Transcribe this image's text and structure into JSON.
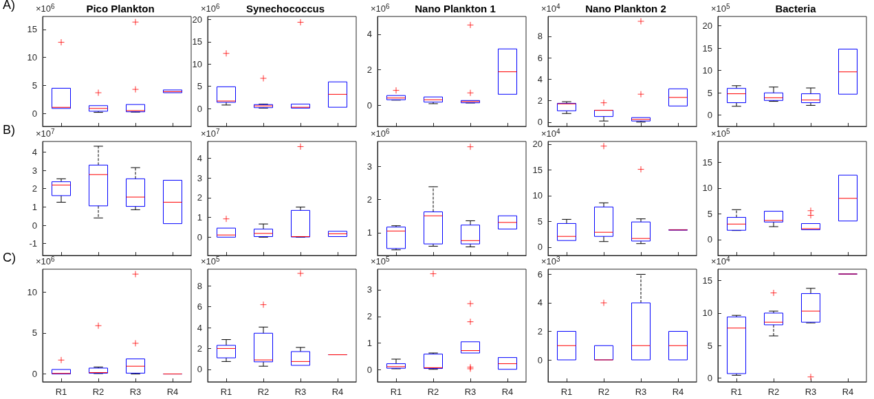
{
  "chart_data": [
    {
      "type": "box",
      "title": "Pico Plankton",
      "ylabel": "×10$^{6}$",
      "annotations": [
        "A)"
      ],
      "categories": [
        null,
        null,
        null,
        null
      ],
      "ylim": [
        -2.3,
        17.3
      ],
      "yticks": [
        0,
        5,
        10,
        15
      ],
      "tick_labels": "y",
      "series": [
        {
          "color": "#0000ff",
          "boxes": [
            {
              "low": 0.9,
              "q1": 0.9,
              "median": 1.1,
              "q3": 4.5,
              "high": 4.5,
              "outliers": [
                12.7
              ]
            },
            {
              "low": 0.2,
              "q1": 0.4,
              "median": 0.9,
              "q3": 1.4,
              "high": 1.4,
              "outliers": [
                3.7
              ]
            },
            {
              "low": 0.25,
              "q1": 0.3,
              "median": 0.5,
              "q3": 1.6,
              "high": 1.6,
              "outliers": [
                4.3,
                16.3
              ]
            },
            {
              "low": 3.7,
              "q1": 3.7,
              "median": 3.9,
              "q3": 4.2,
              "high": 4.2
            }
          ]
        }
      ]
    },
    {
      "type": "box",
      "title": "Synechococcus",
      "ylabel": "×10$^{6}$",
      "categories": [
        null,
        null,
        null,
        null
      ],
      "ylim": [
        -4,
        20.7
      ],
      "yticks": [
        0,
        5,
        10,
        15,
        20
      ],
      "tick_labels": "y",
      "series": [
        {
          "color": "#0000ff",
          "boxes": [
            {
              "low": 0.8,
              "q1": 1.4,
              "median": 1.7,
              "q3": 4.9,
              "high": 4.9,
              "outliers": [
                12.4
              ]
            },
            {
              "low": 0.1,
              "q1": 0.2,
              "median": 0.6,
              "q3": 0.9,
              "high": 1.0,
              "outliers": [
                6.8
              ]
            },
            {
              "low": 0.1,
              "q1": 0.1,
              "median": 0.3,
              "q3": 1.0,
              "high": 1.0,
              "outliers": [
                19.4
              ]
            },
            {
              "low": 0.3,
              "q1": 0.3,
              "median": 3.2,
              "q3": 6.0,
              "high": 6.0
            }
          ]
        }
      ]
    },
    {
      "type": "box",
      "title": "Nano Plankton 1",
      "ylabel": "×10$^{6}$",
      "categories": [
        null,
        null,
        null,
        null
      ],
      "ylim": [
        -1.2,
        5
      ],
      "yticks": [
        0,
        2,
        4
      ],
      "tick_labels": "y",
      "series": [
        {
          "color": "#0000ff",
          "boxes": [
            {
              "low": 0.28,
              "q1": 0.3,
              "median": 0.4,
              "q3": 0.54,
              "high": 0.54,
              "outliers": [
                0.83
              ]
            },
            {
              "low": 0.08,
              "q1": 0.17,
              "median": 0.3,
              "q3": 0.46,
              "high": 0.46
            },
            {
              "low": 0.12,
              "q1": 0.13,
              "median": 0.2,
              "q3": 0.26,
              "high": 0.26,
              "outliers": [
                0.69,
                4.52
              ]
            },
            {
              "low": 0.61,
              "q1": 0.61,
              "median": 1.88,
              "q3": 3.17,
              "high": 3.17
            }
          ]
        }
      ]
    },
    {
      "type": "box",
      "title": "Nano Plankton 2",
      "ylabel": "×10$^{4}$",
      "categories": [
        null,
        null,
        null,
        null
      ],
      "ylim": [
        -0.4,
        9.85
      ],
      "yticks": [
        0,
        2,
        4,
        6,
        8
      ],
      "tick_labels": "y",
      "series": [
        {
          "color": "#0000ff",
          "boxes": [
            {
              "low": 0.8,
              "q1": 1.05,
              "median": 1.7,
              "q3": 1.75,
              "high": 1.9
            },
            {
              "low": 0.1,
              "q1": 0.52,
              "median": 1.1,
              "q3": 1.1,
              "high": 1.1,
              "outliers": [
                1.8
              ]
            },
            {
              "low": 0.0,
              "q1": 0.1,
              "median": 0.25,
              "q3": 0.42,
              "high": 0.42,
              "outliers": [
                2.6,
                9.4
              ]
            },
            {
              "low": 1.5,
              "q1": 1.5,
              "median": 2.3,
              "q3": 3.1,
              "high": 3.1
            }
          ]
        }
      ]
    },
    {
      "type": "box",
      "title": "Bacteria",
      "ylabel": "×10$^{5}$",
      "categories": [
        null,
        null,
        null,
        null
      ],
      "ylim": [
        -2.5,
        22.1
      ],
      "yticks": [
        0,
        5,
        10,
        15,
        20
      ],
      "tick_labels": "y",
      "series": [
        {
          "color": "#0000ff",
          "boxes": [
            {
              "low": 2.0,
              "q1": 2.8,
              "median": 4.8,
              "q3": 6.0,
              "high": 6.6
            },
            {
              "low": 3.1,
              "q1": 3.3,
              "median": 3.9,
              "q3": 5.0,
              "high": 6.3
            },
            {
              "low": 2.2,
              "q1": 2.8,
              "median": 3.4,
              "q3": 4.8,
              "high": 6.1
            },
            {
              "low": 4.7,
              "q1": 4.7,
              "median": 9.7,
              "q3": 14.8,
              "high": 14.8
            }
          ]
        }
      ]
    },
    {
      "type": "box",
      "ylabel": "×10$^{7}$",
      "annotations": [
        "B)"
      ],
      "categories": [
        null,
        null,
        null,
        null
      ],
      "ylim": [
        -1.65,
        4.58
      ],
      "yticks": [
        -1,
        0,
        1,
        2,
        3,
        4
      ],
      "tick_labels": "y",
      "series": [
        {
          "color": "#0000ff",
          "boxes": [
            {
              "low": 1.26,
              "q1": 1.62,
              "median": 2.2,
              "q3": 2.38,
              "high": 2.54
            },
            {
              "low": 0.4,
              "q1": 1.06,
              "median": 2.77,
              "q3": 3.29,
              "high": 4.32
            },
            {
              "low": 0.85,
              "q1": 1.03,
              "median": 1.54,
              "q3": 2.54,
              "high": 3.15
            },
            {
              "low": 0.09,
              "q1": 0.09,
              "median": 1.26,
              "q3": 2.46,
              "high": 2.46
            }
          ]
        }
      ]
    },
    {
      "type": "box",
      "ylabel": "×10$^{7}$",
      "categories": [
        null,
        null,
        null,
        null
      ],
      "ylim": [
        -0.93,
        4.86
      ],
      "yticks": [
        0,
        1,
        2,
        3,
        4
      ],
      "tick_labels": "y",
      "series": [
        {
          "color": "#0000ff",
          "boxes": [
            {
              "low": 0.0,
              "q1": 0.0,
              "median": 0.11,
              "q3": 0.46,
              "high": 0.46,
              "outliers": [
                0.93
              ]
            },
            {
              "low": 0.0,
              "q1": 0.03,
              "median": 0.19,
              "q3": 0.41,
              "high": 0.67
            },
            {
              "low": 0.0,
              "q1": 0.01,
              "median": 0.03,
              "q3": 1.36,
              "high": 1.53,
              "outliers": [
                4.6
              ]
            },
            {
              "low": 0.03,
              "q1": 0.03,
              "median": 0.17,
              "q3": 0.3,
              "high": 0.3
            }
          ]
        }
      ]
    },
    {
      "type": "box",
      "ylabel": "×10$^{6}$",
      "categories": [
        null,
        null,
        null,
        null
      ],
      "ylim": [
        0.31,
        3.76
      ],
      "yticks": [
        1,
        2,
        3
      ],
      "tick_labels": "y",
      "series": [
        {
          "color": "#0000ff",
          "boxes": [
            {
              "low": 0.48,
              "q1": 0.52,
              "median": 1.05,
              "q3": 1.17,
              "high": 1.21
            },
            {
              "low": 0.59,
              "q1": 0.66,
              "median": 1.51,
              "q3": 1.63,
              "high": 2.39
            },
            {
              "low": 0.57,
              "q1": 0.66,
              "median": 0.76,
              "q3": 1.23,
              "high": 1.36,
              "outliers": [
                3.6
              ]
            },
            {
              "low": 1.11,
              "q1": 1.11,
              "median": 1.31,
              "q3": 1.51,
              "high": 1.51
            }
          ]
        }
      ]
    },
    {
      "type": "box",
      "ylabel": "×10$^{4}$",
      "categories": [
        null,
        null,
        null,
        null
      ],
      "ylim": [
        -1.6,
        20.5
      ],
      "yticks": [
        0,
        5,
        10,
        15,
        20
      ],
      "tick_labels": "y",
      "series": [
        {
          "color": "#0000ff",
          "boxes": [
            {
              "low": 1.3,
              "q1": 1.3,
              "median": 2.1,
              "q3": 4.6,
              "high": 5.4
            },
            {
              "low": 1.1,
              "q1": 2.1,
              "median": 2.9,
              "q3": 7.8,
              "high": 8.6,
              "outliers": [
                19.6
              ]
            },
            {
              "low": 0.7,
              "q1": 1.2,
              "median": 1.7,
              "q3": 4.9,
              "high": 5.5,
              "outliers": [
                15.1
              ]
            },
            {
              "low": 3.3,
              "q1": 3.3,
              "median": 3.35,
              "q3": 3.4,
              "high": 3.4
            }
          ]
        }
      ]
    },
    {
      "type": "box",
      "ylabel": "×10$^{5}$",
      "categories": [
        null,
        null,
        null,
        null
      ],
      "ylim": [
        -3.1,
        19.05
      ],
      "yticks": [
        0,
        5,
        10,
        15
      ],
      "tick_labels": "y",
      "series": [
        {
          "color": "#0000ff",
          "boxes": [
            {
              "low": 1.75,
              "q1": 1.8,
              "median": 3.0,
              "q3": 4.3,
              "high": 5.8
            },
            {
              "low": 2.5,
              "q1": 3.4,
              "median": 3.7,
              "q3": 5.5,
              "high": 5.5
            },
            {
              "low": 1.9,
              "q1": 1.9,
              "median": 2.1,
              "q3": 3.1,
              "high": 3.1,
              "outliers": [
                4.7,
                5.6
              ]
            },
            {
              "low": 3.6,
              "q1": 3.6,
              "median": 8.0,
              "q3": 12.5,
              "high": 12.5
            }
          ]
        }
      ]
    },
    {
      "type": "box",
      "ylabel": "×10$^{6}$",
      "annotations": [
        "C)"
      ],
      "categories": [
        "R1",
        "R2",
        "R3",
        "R4"
      ],
      "ylim": [
        -0.96,
        12.8
      ],
      "yticks": [
        0,
        5,
        10
      ],
      "series": [
        {
          "color": "#0000ff",
          "boxes": [
            {
              "low": 0.0,
              "q1": 0.0,
              "median": 0.07,
              "q3": 0.55,
              "high": 0.55,
              "outliers": [
                1.7
              ]
            },
            {
              "low": 0.05,
              "q1": 0.1,
              "median": 0.17,
              "q3": 0.72,
              "high": 0.85,
              "outliers": [
                5.9
              ]
            },
            {
              "low": 0.0,
              "q1": 0.1,
              "median": 0.95,
              "q3": 1.84,
              "high": 1.84,
              "outliers": [
                3.75,
                12.2
              ]
            },
            {
              "low": 0.0,
              "q1": 0.0,
              "median": 0.0,
              "q3": 0.0,
              "high": 0.0
            }
          ]
        }
      ]
    },
    {
      "type": "box",
      "ylabel": "×10$^{5}$",
      "categories": [
        "R1",
        "R2",
        "R3",
        "R4"
      ],
      "ylim": [
        -1.2,
        9.6
      ],
      "yticks": [
        0,
        2,
        4,
        6,
        8
      ],
      "series": [
        {
          "color": "#0000ff",
          "boxes": [
            {
              "low": 0.75,
              "q1": 1.1,
              "median": 2.0,
              "q3": 2.3,
              "high": 2.85
            },
            {
              "low": 0.3,
              "q1": 0.72,
              "median": 0.9,
              "q3": 3.46,
              "high": 4.05,
              "outliers": [
                6.2
              ]
            },
            {
              "low": 0.38,
              "q1": 0.38,
              "median": 0.75,
              "q3": 1.7,
              "high": 2.1,
              "outliers": [
                9.2
              ]
            },
            {
              "low": 1.4,
              "q1": 1.4,
              "median": 1.4,
              "q3": 1.4,
              "high": 1.4
            }
          ]
        }
      ]
    },
    {
      "type": "box",
      "ylabel": "×10$^{5}$",
      "categories": [
        "R1",
        "R2",
        "R3",
        "R4"
      ],
      "ylim": [
        -0.45,
        3.77
      ],
      "yticks": [
        0,
        1,
        2,
        3
      ],
      "series": [
        {
          "color": "#0000ff",
          "boxes": [
            {
              "low": 0.04,
              "q1": 0.06,
              "median": 0.12,
              "q3": 0.23,
              "high": 0.4
            },
            {
              "low": 0.02,
              "q1": 0.05,
              "median": 0.08,
              "q3": 0.59,
              "high": 0.63,
              "outliers": [
                3.6
              ]
            },
            {
              "low": 0.63,
              "q1": 0.63,
              "median": 0.72,
              "q3": 1.05,
              "high": 1.05,
              "outliers": [
                0.04,
                0.1,
                1.8,
                2.48
              ]
            },
            {
              "low": 0.02,
              "q1": 0.02,
              "median": 0.23,
              "q3": 0.46,
              "high": 0.46
            }
          ]
        }
      ]
    },
    {
      "type": "box",
      "ylabel": "×10$^{3}$",
      "categories": [
        "R1",
        "R2",
        "R3",
        "R4"
      ],
      "ylim": [
        -1.54,
        6.36
      ],
      "yticks": [
        0,
        2,
        4,
        6
      ],
      "series": [
        {
          "color": "#0000ff",
          "boxes": [
            {
              "low": 0,
              "q1": 0,
              "median": 1,
              "q3": 2,
              "high": 2
            },
            {
              "low": 0,
              "q1": 0,
              "median": 0,
              "q3": 1,
              "high": 1,
              "outliers": [
                4
              ]
            },
            {
              "low": 0,
              "q1": 0,
              "median": 1,
              "q3": 4,
              "high": 6
            },
            {
              "low": 0,
              "q1": 0,
              "median": 1,
              "q3": 2,
              "high": 2
            }
          ]
        }
      ]
    },
    {
      "type": "box",
      "ylabel": "×10$^{4}$",
      "categories": [
        "R1",
        "R2",
        "R3",
        "R4"
      ],
      "ylim": [
        -0.56,
        16.74
      ],
      "yticks": [
        0,
        5,
        10,
        15
      ],
      "series": [
        {
          "color": "#0000ff",
          "boxes": [
            {
              "low": 0.45,
              "q1": 0.7,
              "median": 7.7,
              "q3": 9.4,
              "high": 9.65
            },
            {
              "low": 6.5,
              "q1": 8.2,
              "median": 8.6,
              "q3": 10.0,
              "high": 10.3,
              "outliers": [
                13.1
              ]
            },
            {
              "low": 8.5,
              "q1": 8.6,
              "median": 10.3,
              "q3": 13.0,
              "high": 13.8,
              "outliers": [
                0.2
              ]
            },
            {
              "low": 16,
              "q1": 16,
              "median": 16,
              "q3": 16,
              "high": 16
            }
          ]
        }
      ]
    }
  ]
}
